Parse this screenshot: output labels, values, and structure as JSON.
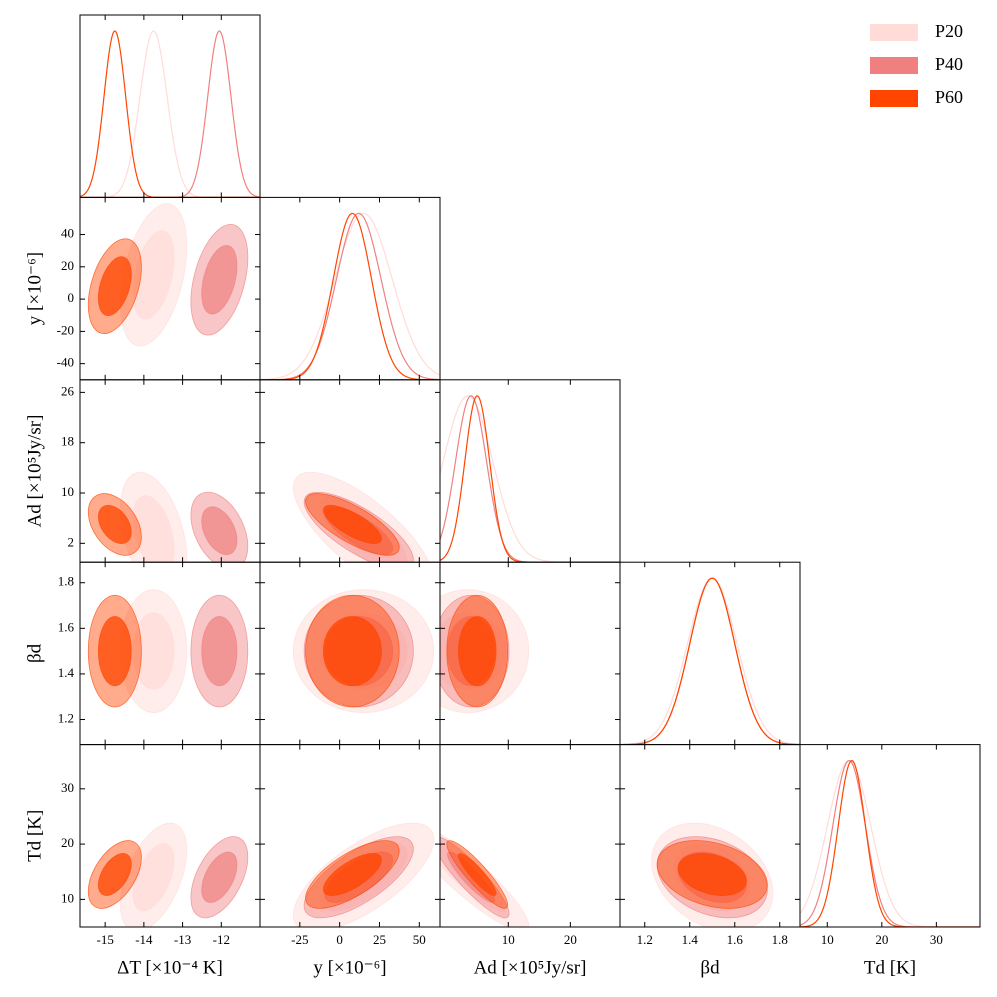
{
  "chart_data": {
    "type": "corner",
    "legend": "upper right",
    "axes": [
      {
        "label": "ΔT [×10⁻⁴ K]",
        "lim": [
          -15.65,
          -11
        ],
        "xticks": [
          -15,
          -14,
          -13,
          -12
        ]
      },
      {
        "label": "y [×10⁻⁶]",
        "lim": [
          -50,
          63
        ],
        "xticks": [
          -25,
          0,
          25,
          50
        ],
        "yticks": [
          -40,
          -20,
          0,
          20,
          40
        ]
      },
      {
        "label": "Ad [×10⁵Jy/sr]",
        "lim": [
          -1,
          28
        ],
        "xticks": [
          10,
          20
        ],
        "yticks": [
          2,
          10,
          18,
          26
        ]
      },
      {
        "label": "βd",
        "lim": [
          1.09,
          1.89
        ],
        "xticks": [
          1.2,
          1.4,
          1.6,
          1.8
        ],
        "yticks": [
          1.2,
          1.4,
          1.6,
          1.8
        ]
      },
      {
        "label": "Td [K]",
        "lim": [
          5,
          38
        ],
        "xticks": [
          10,
          20,
          30
        ],
        "yticks": [
          10,
          20,
          30
        ]
      }
    ],
    "correlation": [
      [
        1,
        0.4,
        -0.4,
        0,
        0.5
      ],
      [
        0.4,
        1,
        -0.75,
        0,
        0.7
      ],
      [
        -0.4,
        -0.75,
        1,
        0,
        -0.9
      ],
      [
        0,
        0,
        0,
        1,
        -0.3
      ],
      [
        0.5,
        0.7,
        -0.9,
        -0.3,
        1
      ]
    ],
    "series": [
      {
        "name": "P20",
        "color": "#ffdcd8",
        "mean": [
          -13.75,
          15,
          3.5,
          1.5,
          14
        ],
        "sd": [
          0.35,
          18,
          4,
          0.11,
          4
        ]
      },
      {
        "name": "P40",
        "color": "#f08080",
        "mean": [
          -12.05,
          12,
          4,
          1.5,
          14
        ],
        "sd": [
          0.3,
          14,
          2.5,
          0.1,
          3
        ]
      },
      {
        "name": "P60",
        "color": "#ff4500",
        "mean": [
          -14.75,
          8,
          5,
          1.5,
          14.5
        ],
        "sd": [
          0.28,
          12,
          2,
          0.1,
          2.5
        ]
      }
    ]
  }
}
